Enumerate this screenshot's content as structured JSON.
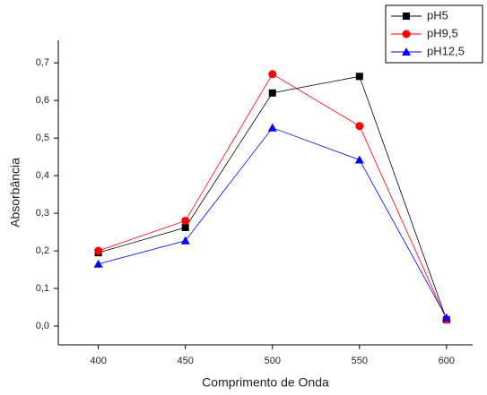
{
  "chart_data": {
    "type": "line",
    "x_label": "Comprimento de Onda",
    "y_label": "Absorbância",
    "x": [
      400,
      450,
      500,
      550,
      600
    ],
    "series": [
      {
        "name": "pH5",
        "color": "#000000",
        "marker": "square",
        "values": [
          0.195,
          0.262,
          0.62,
          0.664,
          0.017
        ]
      },
      {
        "name": "pH9,5",
        "color": "#ff0000",
        "marker": "circle",
        "values": [
          0.2,
          0.28,
          0.67,
          0.532,
          0.017
        ]
      },
      {
        "name": "pH12,5",
        "color": "#0000ff",
        "marker": "triangle",
        "values": [
          0.165,
          0.227,
          0.527,
          0.442,
          0.022
        ]
      }
    ],
    "xlim": [
      377,
      615
    ],
    "xticks": [
      400,
      450,
      500,
      550,
      600
    ],
    "ylim": [
      -0.05,
      0.76
    ],
    "yticks": [
      {
        "value": 0,
        "label": "0,0"
      },
      {
        "value": 0.1,
        "label": "0,1"
      },
      {
        "value": 0.2,
        "label": "0,2"
      },
      {
        "value": 0.3,
        "label": "0,3"
      },
      {
        "value": 0.4,
        "label": "0,4"
      },
      {
        "value": 0.5,
        "label": "0,5"
      },
      {
        "value": 0.6,
        "label": "0,6"
      },
      {
        "value": 0.7,
        "label": "0,7"
      }
    ],
    "legend": "upper-right",
    "grid": false
  }
}
